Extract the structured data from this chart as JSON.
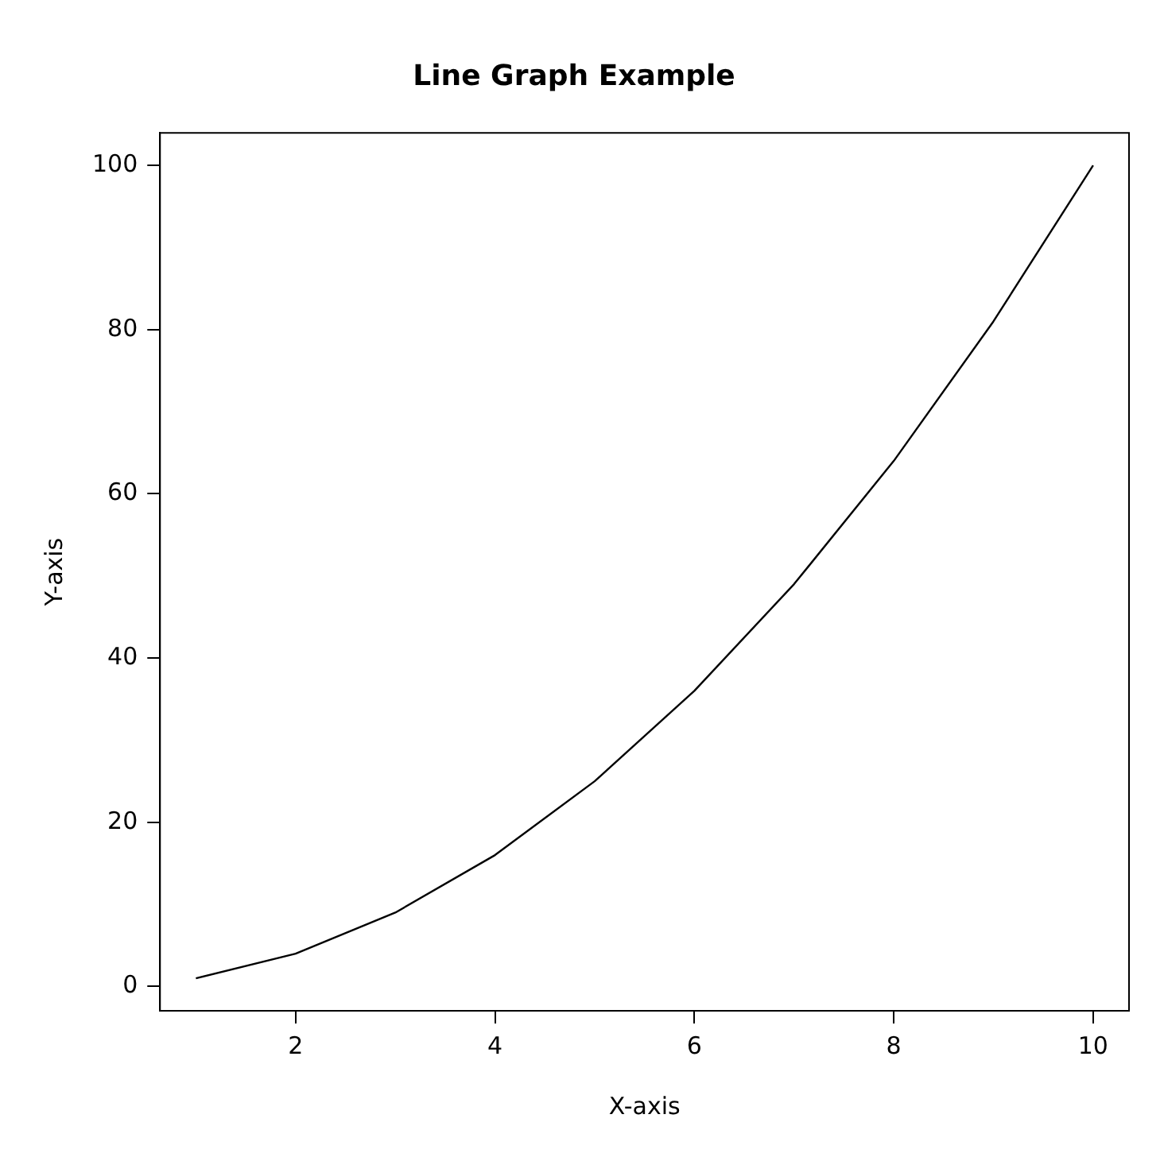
{
  "chart_data": {
    "type": "line",
    "title": "Line Graph Example",
    "xlabel": "X-axis",
    "ylabel": "Y-axis",
    "x": [
      1,
      2,
      3,
      4,
      5,
      6,
      7,
      8,
      9,
      10
    ],
    "series": [
      {
        "color": "#000000",
        "values": [
          1,
          4,
          9,
          16,
          25,
          36,
          49,
          64,
          81,
          100
        ]
      }
    ],
    "xlim": [
      0.64,
      10.36
    ],
    "xticks": [
      2,
      4,
      6,
      8,
      10
    ],
    "ylim": [
      -2.96,
      103.96
    ],
    "yticks": [
      0,
      20,
      40,
      60,
      80,
      100
    ],
    "grid": false,
    "legend": false,
    "marker": "none",
    "line_style": "solid"
  }
}
